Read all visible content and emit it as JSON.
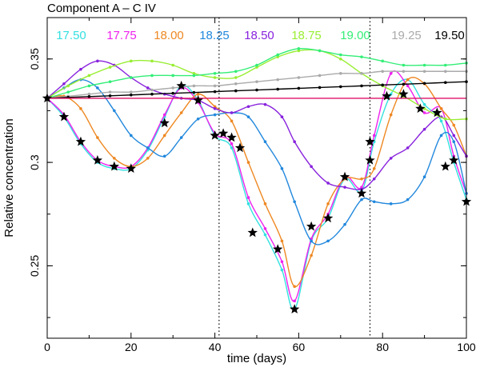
{
  "chart_data": {
    "type": "line",
    "title": "Component A – C IV",
    "xlabel": "time (days)",
    "ylabel": "Relative concentration",
    "xlim": [
      0,
      100
    ],
    "ylim": [
      0.215,
      0.37
    ],
    "xticks": [
      0,
      20,
      40,
      60,
      80,
      100
    ],
    "xtick_labels": [
      "0",
      "20",
      "40",
      "60",
      "80",
      "100"
    ],
    "yticks": [
      0.25,
      0.3,
      0.35
    ],
    "ytick_labels": [
      "0.25",
      "0.3",
      "0.35"
    ],
    "vlines": [
      41,
      77
    ],
    "grid": false,
    "legend_position": "top",
    "series": [
      {
        "name": "17.50",
        "color": "#33e0e0",
        "x": [
          0,
          4,
          8,
          12,
          16,
          20,
          24,
          28,
          32,
          36,
          40,
          44,
          48,
          52,
          56,
          59,
          63,
          67,
          71,
          75,
          78,
          82,
          86,
          90,
          94,
          97,
          100
        ],
        "values": [
          0.331,
          0.322,
          0.309,
          0.3,
          0.297,
          0.297,
          0.306,
          0.322,
          0.337,
          0.33,
          0.313,
          0.307,
          0.28,
          0.265,
          0.248,
          0.229,
          0.262,
          0.273,
          0.292,
          0.286,
          0.31,
          0.333,
          0.34,
          0.328,
          0.32,
          0.3,
          0.282
        ]
      },
      {
        "name": "17.75",
        "color": "#ee22ee",
        "x": [
          0,
          4,
          8,
          12,
          16,
          20,
          24,
          28,
          32,
          36,
          40,
          44,
          48,
          52,
          56,
          59,
          63,
          67,
          71,
          75,
          78,
          82,
          86,
          90,
          94,
          97,
          100
        ],
        "values": [
          0.331,
          0.323,
          0.31,
          0.301,
          0.298,
          0.298,
          0.307,
          0.323,
          0.336,
          0.329,
          0.314,
          0.309,
          0.283,
          0.268,
          0.252,
          0.233,
          0.263,
          0.275,
          0.293,
          0.288,
          0.313,
          0.343,
          0.337,
          0.324,
          0.326,
          0.303,
          0.285
        ]
      },
      {
        "name": "18.00",
        "color": "#ee8822",
        "x": [
          0,
          4,
          8,
          12,
          16,
          20,
          24,
          28,
          32,
          36,
          40,
          44,
          48,
          52,
          56,
          59,
          63,
          67,
          71,
          75,
          78,
          82,
          86,
          90,
          94,
          97,
          100
        ],
        "values": [
          0.331,
          0.332,
          0.326,
          0.312,
          0.302,
          0.298,
          0.302,
          0.313,
          0.324,
          0.333,
          0.327,
          0.32,
          0.3,
          0.28,
          0.262,
          0.24,
          0.255,
          0.28,
          0.292,
          0.292,
          0.297,
          0.323,
          0.34,
          0.338,
          0.326,
          0.318,
          0.303
        ]
      },
      {
        "name": "18.25",
        "color": "#2288dd",
        "x": [
          0,
          4,
          8,
          12,
          16,
          20,
          24,
          28,
          32,
          36,
          40,
          44,
          48,
          52,
          56,
          59,
          63,
          67,
          71,
          75,
          78,
          82,
          86,
          90,
          94,
          97,
          100
        ],
        "values": [
          0.331,
          0.336,
          0.34,
          0.336,
          0.325,
          0.313,
          0.307,
          0.303,
          0.312,
          0.321,
          0.323,
          0.324,
          0.322,
          0.31,
          0.297,
          0.281,
          0.262,
          0.262,
          0.27,
          0.282,
          0.281,
          0.28,
          0.282,
          0.293,
          0.313,
          0.31,
          0.285
        ]
      },
      {
        "name": "18.50",
        "color": "#8822dd",
        "x": [
          0,
          4,
          8,
          12,
          16,
          20,
          24,
          28,
          32,
          36,
          40,
          44,
          48,
          52,
          56,
          59,
          63,
          67,
          71,
          75,
          78,
          82,
          86,
          90,
          94,
          97,
          100
        ],
        "values": [
          0.331,
          0.338,
          0.345,
          0.349,
          0.347,
          0.341,
          0.336,
          0.333,
          0.331,
          0.33,
          0.326,
          0.324,
          0.327,
          0.328,
          0.322,
          0.31,
          0.298,
          0.29,
          0.288,
          0.287,
          0.292,
          0.302,
          0.307,
          0.316,
          0.322,
          0.313,
          0.303
        ]
      },
      {
        "name": "18.75",
        "color": "#99ee33",
        "x": [
          0,
          5,
          10,
          15,
          20,
          25,
          30,
          35,
          40,
          45,
          50,
          55,
          60,
          65,
          70,
          75,
          80,
          85,
          90,
          95,
          100
        ],
        "values": [
          0.331,
          0.337,
          0.342,
          0.346,
          0.349,
          0.349,
          0.347,
          0.343,
          0.341,
          0.341,
          0.346,
          0.351,
          0.354,
          0.354,
          0.35,
          0.343,
          0.337,
          0.332,
          0.326,
          0.321,
          0.321
        ]
      },
      {
        "name": "19.00",
        "color": "#33ee77",
        "x": [
          0,
          5,
          10,
          15,
          20,
          25,
          30,
          35,
          40,
          45,
          50,
          55,
          60,
          65,
          70,
          75,
          80,
          85,
          90,
          95,
          100
        ],
        "values": [
          0.331,
          0.334,
          0.337,
          0.339,
          0.341,
          0.342,
          0.342,
          0.342,
          0.343,
          0.344,
          0.347,
          0.352,
          0.355,
          0.354,
          0.352,
          0.351,
          0.349,
          0.347,
          0.347,
          0.347,
          0.348
        ]
      },
      {
        "name": "19.25",
        "color": "#aaaaaa",
        "x": [
          0,
          5,
          10,
          15,
          20,
          25,
          30,
          35,
          40,
          45,
          50,
          55,
          60,
          65,
          70,
          75,
          80,
          85,
          90,
          95,
          100
        ],
        "values": [
          0.331,
          0.332,
          0.333,
          0.334,
          0.334,
          0.335,
          0.336,
          0.337,
          0.337,
          0.338,
          0.339,
          0.34,
          0.341,
          0.342,
          0.343,
          0.343,
          0.344,
          0.344,
          0.344,
          0.344,
          0.344
        ]
      },
      {
        "name": "19.50",
        "color": "#000000",
        "x": [
          0,
          5,
          10,
          15,
          20,
          25,
          30,
          35,
          40,
          45,
          50,
          55,
          60,
          65,
          70,
          75,
          80,
          85,
          90,
          95,
          100
        ],
        "values": [
          0.331,
          0.3314,
          0.3318,
          0.3322,
          0.3326,
          0.333,
          0.3334,
          0.3338,
          0.3342,
          0.3346,
          0.335,
          0.3354,
          0.3358,
          0.3362,
          0.3366,
          0.337,
          0.3374,
          0.3378,
          0.3382,
          0.3386,
          0.339
        ]
      },
      {
        "name": "",
        "color": "#dd1166",
        "x": [
          0,
          100
        ],
        "values": [
          0.331,
          0.331
        ]
      }
    ],
    "observations": {
      "marker": "star",
      "color": "#000000",
      "x": [
        0,
        4,
        8,
        12,
        16,
        20,
        28,
        32,
        36,
        40,
        42,
        44,
        46,
        49,
        55,
        59,
        63,
        67,
        71,
        75,
        77,
        77,
        81,
        85,
        89,
        93,
        95,
        97,
        100
      ],
      "values": [
        0.331,
        0.322,
        0.31,
        0.301,
        0.298,
        0.297,
        0.319,
        0.337,
        0.33,
        0.313,
        0.314,
        0.312,
        0.307,
        0.266,
        0.258,
        0.229,
        0.269,
        0.273,
        0.293,
        0.285,
        0.31,
        0.301,
        0.332,
        0.333,
        0.326,
        0.324,
        0.298,
        0.301,
        0.281
      ]
    }
  }
}
